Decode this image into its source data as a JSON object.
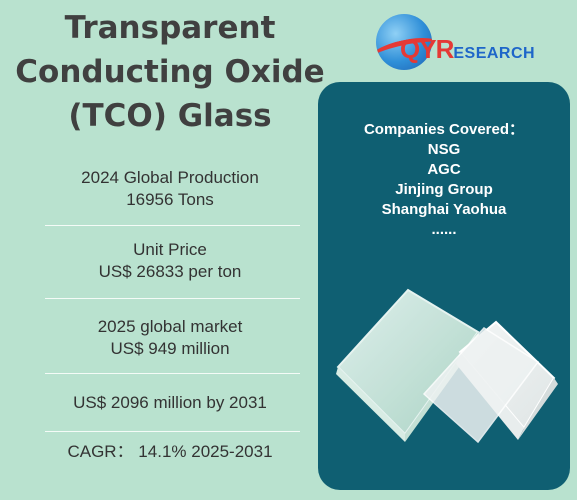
{
  "title": {
    "line1": "Transparent",
    "line2": "Conducting Oxide",
    "line3": "(TCO) Glass"
  },
  "logo": {
    "name": "QYResearch",
    "icon": "globe-logo-icon"
  },
  "stats": [
    {
      "label": "2024 Global Production",
      "value": "16956 Tons"
    },
    {
      "label": "Unit Price",
      "value": "US$ 26833 per ton"
    },
    {
      "label": "2025 global market",
      "value": "US$ 949 million"
    },
    {
      "label": "US$ 2096 million by 2031",
      "value": ""
    },
    {
      "label": "CAGR： 14.1% 2025-2031",
      "value": ""
    }
  ],
  "companies": {
    "heading": "Companies Covered：",
    "items": [
      "NSG",
      "AGC",
      "Jinjing Group",
      "Shanghai Yaohua",
      "......"
    ]
  },
  "colors": {
    "background": "#b9e2cf",
    "panel": "#0f5f72",
    "text": "#333333"
  },
  "image": {
    "icon": "glass-panels-image"
  }
}
